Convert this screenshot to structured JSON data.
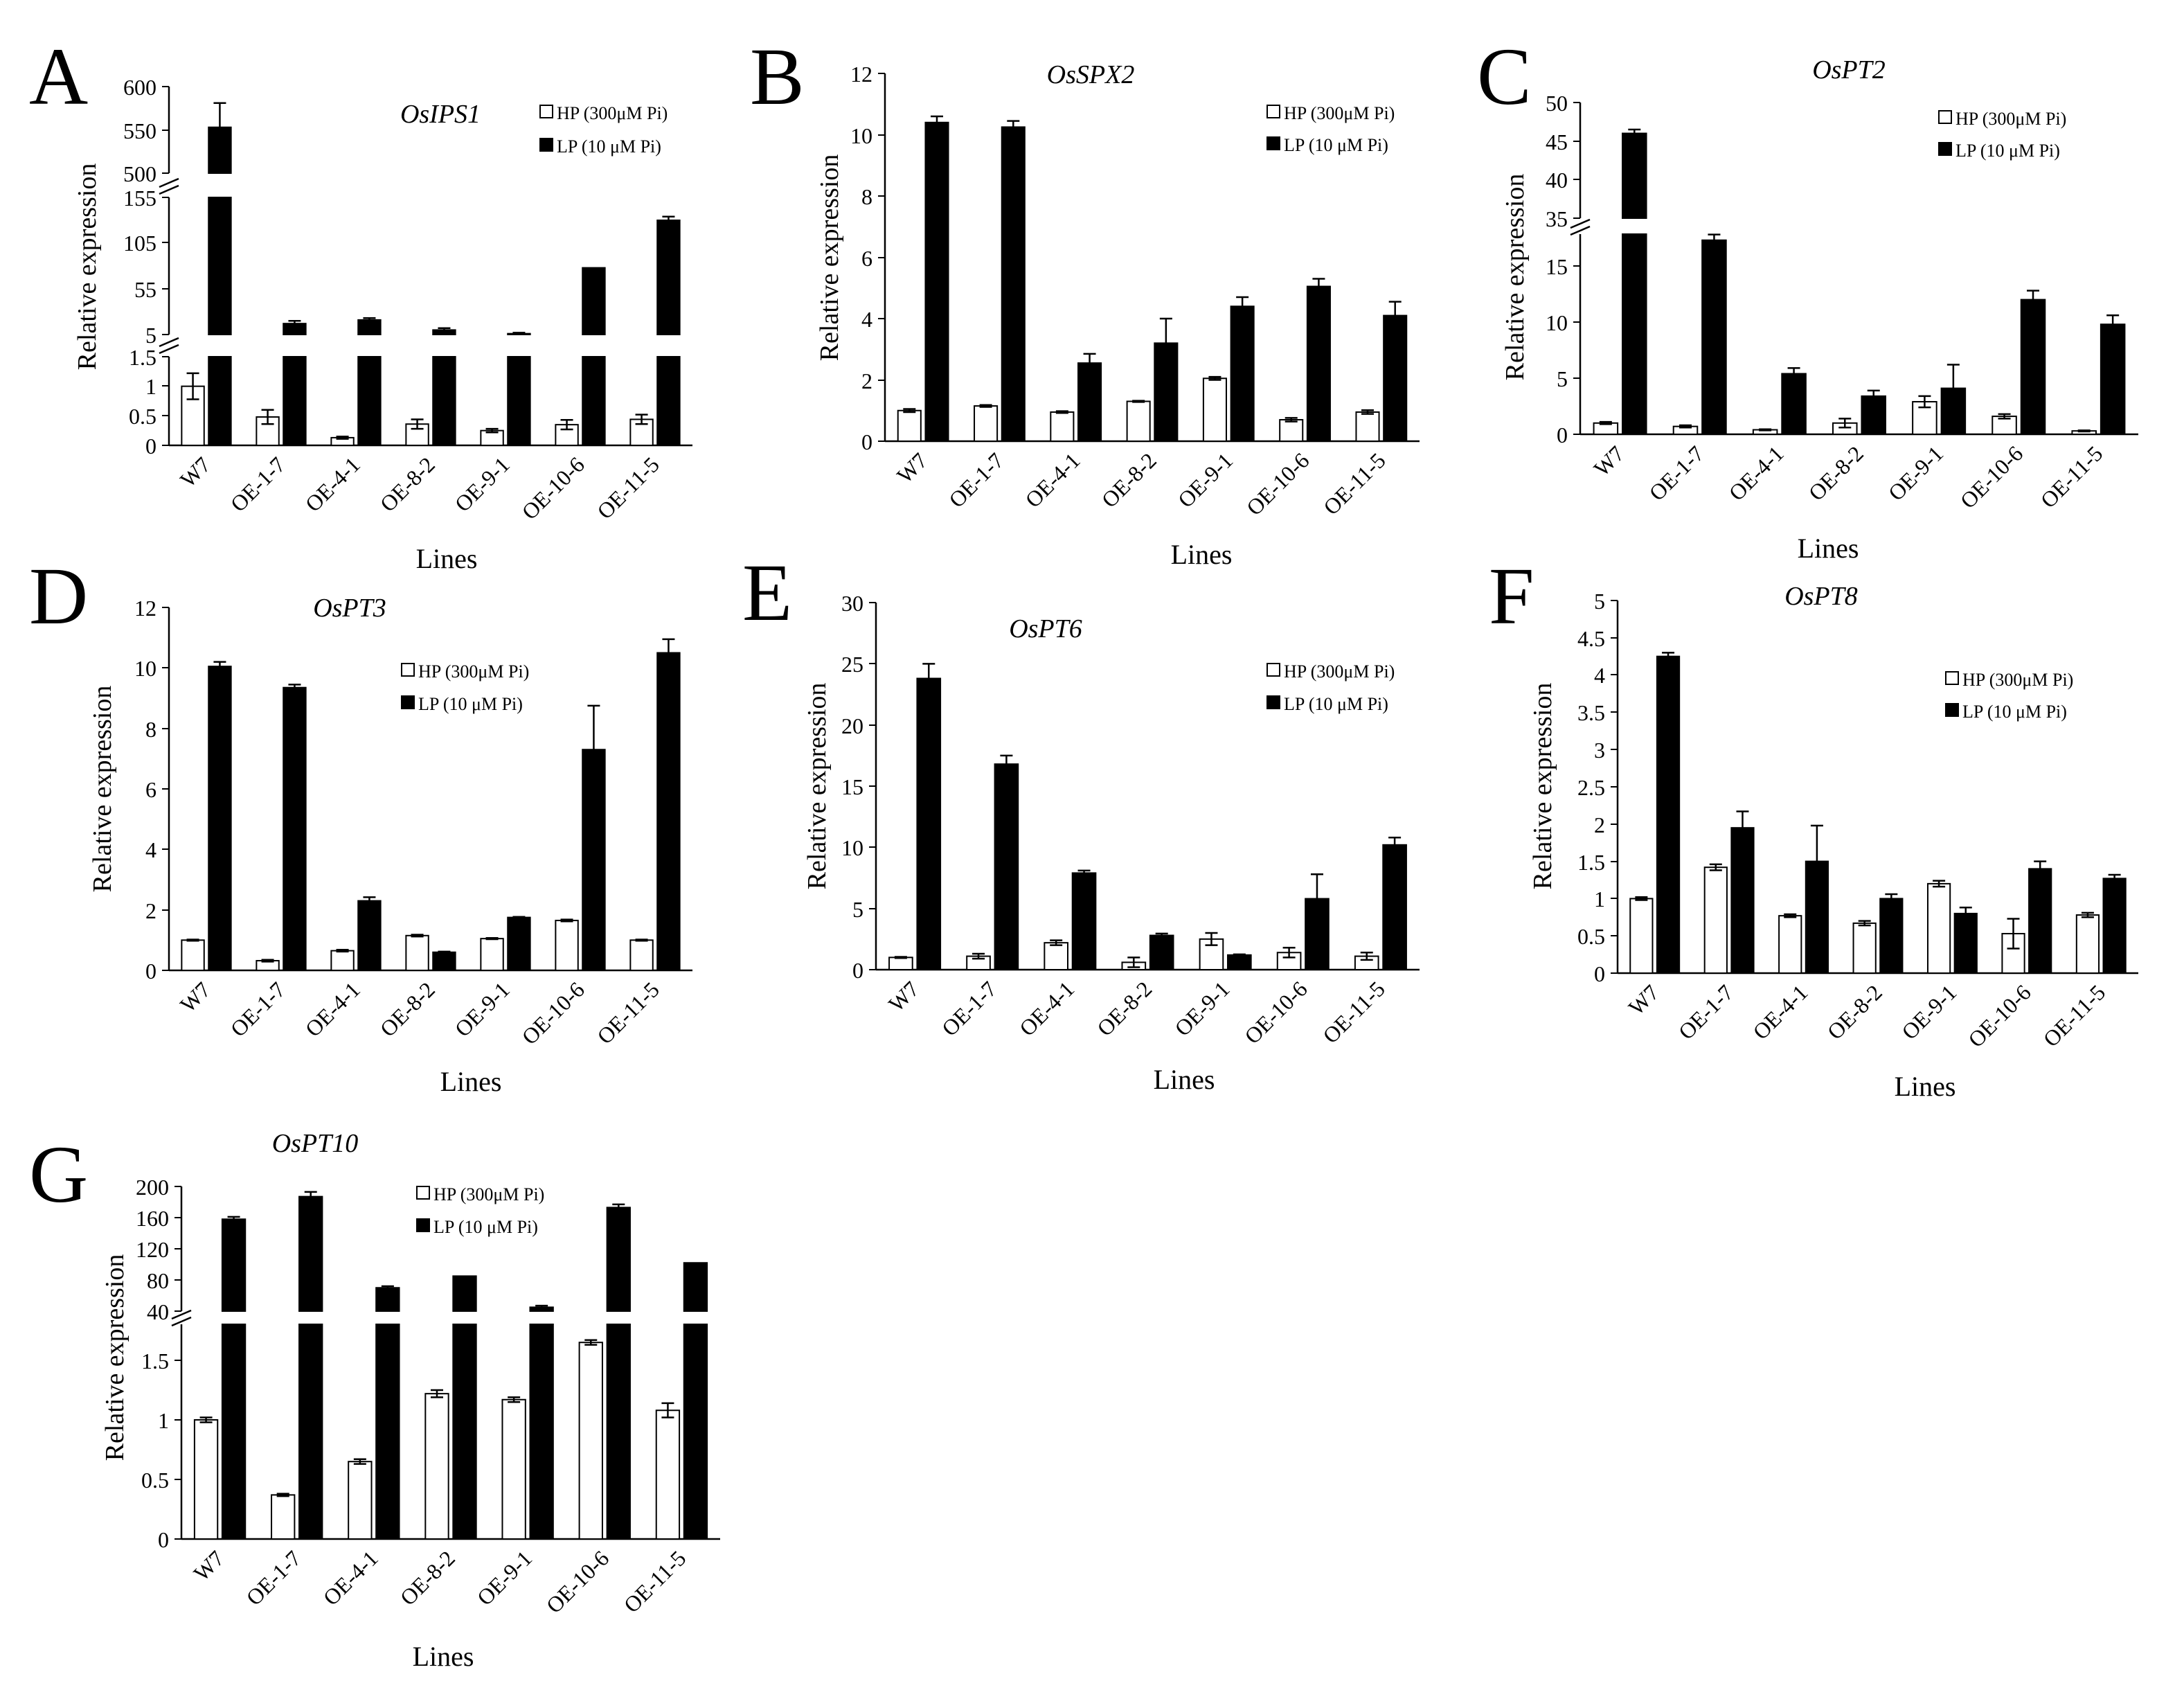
{
  "figure": {
    "legend_hp": "HP (300μM Pi)",
    "legend_lp": "LP (10 μM Pi)",
    "xlabel": "Lines",
    "ylabel": "Relative expression",
    "categories": [
      "W7",
      "OE-1-7",
      "OE-4-1",
      "OE-8-2",
      "OE-9-1",
      "OE-10-6",
      "OE-11-5"
    ],
    "colors": {
      "hp_fill": "#ffffff",
      "lp_fill": "#000000",
      "stroke": "#000000"
    }
  },
  "chart_data": [
    {
      "panel": "A",
      "title": "OsIPS1",
      "type": "bar",
      "categories": [
        "W7",
        "OE-1-7",
        "OE-4-1",
        "OE-8-2",
        "OE-9-1",
        "OE-10-6",
        "OE-11-5"
      ],
      "series": [
        {
          "name": "HP (300μM Pi)",
          "values": [
            1.0,
            0.48,
            0.13,
            0.36,
            0.25,
            0.35,
            0.44
          ],
          "errors": [
            0.22,
            0.12,
            0.02,
            0.08,
            0.03,
            0.08,
            0.08
          ]
        },
        {
          "name": "LP (10 μM Pi)",
          "values": [
            553,
            17,
            21,
            10,
            6,
            78,
            130
          ],
          "errors": [
            28,
            3,
            2,
            2,
            1,
            0,
            4
          ]
        }
      ],
      "ylabel": "Relative expression",
      "xlabel": "Lines",
      "ylim_segments": [
        [
          0,
          1.5
        ],
        [
          5,
          155
        ],
        [
          500,
          600
        ]
      ],
      "yticks": [
        [
          "0",
          "0.5",
          "1",
          "1.5"
        ],
        [
          "5",
          "55",
          "105",
          "155"
        ],
        [
          "500",
          "550",
          "600"
        ]
      ]
    },
    {
      "panel": "B",
      "title": "OsSPX2",
      "type": "bar",
      "categories": [
        "W7",
        "OE-1-7",
        "OE-4-1",
        "OE-8-2",
        "OE-9-1",
        "OE-10-6",
        "OE-11-5"
      ],
      "series": [
        {
          "name": "HP (300μM Pi)",
          "values": [
            1.0,
            1.15,
            0.95,
            1.3,
            2.05,
            0.7,
            0.95
          ],
          "errors": [
            0.05,
            0.03,
            0.03,
            0.02,
            0.05,
            0.06,
            0.06
          ]
        },
        {
          "name": "LP (10 μM Pi)",
          "values": [
            10.4,
            10.25,
            2.55,
            3.2,
            4.4,
            5.05,
            4.1
          ],
          "errors": [
            0.2,
            0.2,
            0.3,
            0.8,
            0.3,
            0.25,
            0.45
          ]
        }
      ],
      "ylabel": "Relative expression",
      "xlabel": "Lines",
      "ylim": [
        0,
        12
      ],
      "yticks": [
        "0",
        "2",
        "4",
        "6",
        "8",
        "10",
        "12"
      ]
    },
    {
      "panel": "C",
      "title": "OsPT2",
      "type": "bar",
      "categories": [
        "W7",
        "OE-1-7",
        "OE-4-1",
        "OE-8-2",
        "OE-9-1",
        "OE-10-6",
        "OE-11-5"
      ],
      "series": [
        {
          "name": "HP (300μM Pi)",
          "values": [
            1.0,
            0.7,
            0.4,
            1.0,
            2.9,
            1.6,
            0.3
          ],
          "errors": [
            0.1,
            0.1,
            0.05,
            0.4,
            0.5,
            0.2,
            0.05
          ]
        },
        {
          "name": "LP (10 μM Pi)",
          "values": [
            46,
            17.3,
            5.4,
            3.4,
            4.1,
            12,
            9.8
          ],
          "errors": [
            0.5,
            0.5,
            0.5,
            0.5,
            2.1,
            0.8,
            0.8
          ]
        }
      ],
      "ylabel": "Relative expression",
      "xlabel": "Lines",
      "ylim_segments": [
        [
          0,
          18
        ],
        [
          35,
          50
        ]
      ],
      "yticks": [
        [
          "0",
          "5",
          "10",
          "15"
        ],
        [
          "35",
          "40",
          "45",
          "50"
        ]
      ]
    },
    {
      "panel": "D",
      "title": "OsPT3",
      "type": "bar",
      "categories": [
        "W7",
        "OE-1-7",
        "OE-4-1",
        "OE-8-2",
        "OE-9-1",
        "OE-10-6",
        "OE-11-5"
      ],
      "series": [
        {
          "name": "HP (300μM Pi)",
          "values": [
            1.0,
            0.32,
            0.65,
            1.15,
            1.05,
            1.65,
            1.0
          ],
          "errors": [
            0.02,
            0.03,
            0.03,
            0.03,
            0.02,
            0.03,
            0.02
          ]
        },
        {
          "name": "LP (10 μM Pi)",
          "values": [
            10.05,
            9.35,
            2.3,
            0.6,
            1.75,
            7.3,
            10.5
          ],
          "errors": [
            0.15,
            0.1,
            0.12,
            0.02,
            0.02,
            1.45,
            0.45
          ]
        }
      ],
      "ylabel": "Relative expression",
      "xlabel": "Lines",
      "ylim": [
        0,
        12
      ],
      "yticks": [
        "0",
        "2",
        "4",
        "6",
        "8",
        "10",
        "12"
      ]
    },
    {
      "panel": "E",
      "title": "OsPT6",
      "type": "bar",
      "categories": [
        "W7",
        "OE-1-7",
        "OE-4-1",
        "OE-8-2",
        "OE-9-1",
        "OE-10-6",
        "OE-11-5"
      ],
      "series": [
        {
          "name": "HP (300μM Pi)",
          "values": [
            1.0,
            1.1,
            2.2,
            0.6,
            2.5,
            1.4,
            1.1
          ],
          "errors": [
            0.05,
            0.2,
            0.2,
            0.4,
            0.5,
            0.4,
            0.3
          ]
        },
        {
          "name": "LP (10 μM Pi)",
          "values": [
            23.8,
            16.8,
            7.9,
            2.8,
            1.2,
            5.8,
            10.2
          ],
          "errors": [
            1.2,
            0.7,
            0.2,
            0.15,
            0.05,
            2.0,
            0.6
          ]
        }
      ],
      "ylabel": "Relative expression",
      "xlabel": "Lines",
      "ylim": [
        0,
        30
      ],
      "yticks": [
        "0",
        "5",
        "10",
        "15",
        "20",
        "25",
        "30"
      ]
    },
    {
      "panel": "F",
      "title": "OsPT8",
      "type": "bar",
      "categories": [
        "W7",
        "OE-1-7",
        "OE-4-1",
        "OE-8-2",
        "OE-9-1",
        "OE-10-6",
        "OE-11-5"
      ],
      "series": [
        {
          "name": "HP (300μM Pi)",
          "values": [
            1.0,
            1.42,
            0.77,
            0.67,
            1.2,
            0.53,
            0.78
          ],
          "errors": [
            0.02,
            0.04,
            0.02,
            0.03,
            0.04,
            0.2,
            0.03
          ]
        },
        {
          "name": "LP (10 μM Pi)",
          "values": [
            4.25,
            1.95,
            1.5,
            1.0,
            0.8,
            1.4,
            1.27
          ],
          "errors": [
            0.05,
            0.22,
            0.48,
            0.06,
            0.08,
            0.1,
            0.05
          ]
        }
      ],
      "ylabel": "Relative expression",
      "xlabel": "Lines",
      "ylim": [
        0,
        5
      ],
      "yticks": [
        "0",
        "0.5",
        "1",
        "1.5",
        "2",
        "2.5",
        "3",
        "3.5",
        "4",
        "4.5",
        "5"
      ]
    },
    {
      "panel": "G",
      "title": "OsPT10",
      "type": "bar",
      "categories": [
        "W7",
        "OE-1-7",
        "OE-4-1",
        "OE-8-2",
        "OE-9-1",
        "OE-10-6",
        "OE-11-5"
      ],
      "series": [
        {
          "name": "HP (300μM Pi)",
          "values": [
            1.0,
            0.37,
            0.65,
            1.22,
            1.17,
            1.65,
            1.08
          ],
          "errors": [
            0.02,
            0.01,
            0.02,
            0.03,
            0.02,
            0.02,
            0.06
          ]
        },
        {
          "name": "LP (10 μM Pi)",
          "values": [
            158,
            187,
            70,
            85,
            45,
            173,
            102
          ],
          "errors": [
            3,
            6,
            2,
            0,
            2,
            4,
            0
          ]
        }
      ],
      "ylabel": "Relative expression",
      "xlabel": "Lines",
      "ylim_segments": [
        [
          0,
          1.8
        ],
        [
          40,
          200
        ]
      ],
      "yticks": [
        [
          "0",
          "0.5",
          "1",
          "1.5"
        ],
        [
          "40",
          "80",
          "120",
          "160",
          "200"
        ]
      ]
    }
  ]
}
